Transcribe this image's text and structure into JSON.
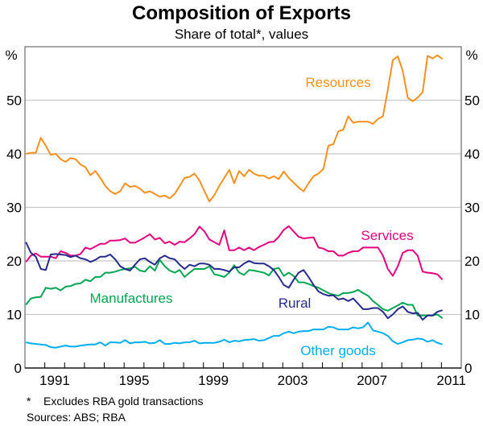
{
  "chart_data": {
    "type": "line",
    "title": "Composition of Exports",
    "subtitle": "Share of total*, values",
    "ylabel_left": "%",
    "ylabel_right": "%",
    "ylim": [
      0,
      60
    ],
    "yticks": [
      0,
      10,
      20,
      30,
      40,
      50
    ],
    "xlim": [
      1990,
      2012
    ],
    "xtick_labels": [
      "1991",
      "1995",
      "1999",
      "2003",
      "2007",
      "2011"
    ],
    "x_frequency": "quarterly",
    "x_start": "1990 Q1",
    "grid": true,
    "series": [
      {
        "name": "Resources",
        "color": "#f7901e",
        "values": [
          40,
          40.2,
          40.2,
          43,
          41.5,
          39.8,
          40,
          39,
          38.5,
          39.2,
          39,
          38,
          37.5,
          36,
          36.8,
          35.5,
          34,
          33,
          32.5,
          33,
          34.5,
          33.8,
          34,
          33.5,
          32.7,
          33,
          32.5,
          32,
          32.2,
          31.7,
          32.5,
          34,
          35.5,
          35.7,
          36.3,
          35,
          33,
          31.1,
          32.3,
          34,
          35.5,
          37,
          34.5,
          36.8,
          35.8,
          37,
          36.3,
          35.9,
          35.9,
          35.4,
          35.8,
          35.3,
          36.7,
          35.5,
          34.6,
          33.7,
          33,
          34.5,
          35.8,
          36.3,
          37.2,
          41.5,
          41.8,
          44.2,
          44.5,
          47,
          45.8,
          46,
          46,
          46,
          45.6,
          46.5,
          47,
          52,
          57.5,
          58.2,
          55.5,
          50.5,
          49.8,
          50.5,
          51.5,
          58.3,
          57.8,
          58.4,
          57.7
        ]
      },
      {
        "name": "Services",
        "color": "#e6007e",
        "values": [
          19.8,
          21,
          21.4,
          20.8,
          20.8,
          20.8,
          20.5,
          21.8,
          21.5,
          21,
          21,
          21.3,
          22.5,
          22.2,
          22.7,
          23.2,
          23.2,
          23.8,
          23.8,
          23.9,
          24.2,
          23.4,
          23.4,
          23.9,
          24.4,
          25,
          24,
          24.3,
          23.3,
          23.6,
          23,
          23.6,
          23.5,
          24.2,
          25,
          26.4,
          25.5,
          24,
          23.5,
          23,
          25.7,
          22,
          22,
          22.5,
          22,
          22.5,
          22,
          22.6,
          23,
          23.5,
          23.6,
          24.5,
          25.8,
          26.5,
          25.5,
          24.5,
          24.2,
          24.3,
          24.4,
          22.5,
          22.3,
          21.8,
          21.8,
          21,
          21,
          21.5,
          21.8,
          21.8,
          22.5,
          22.5,
          22.5,
          22.5,
          21,
          18.5,
          17.2,
          19,
          21.5,
          22,
          22,
          21,
          18,
          17.8,
          17.7,
          17.5,
          16.5
        ]
      },
      {
        "name": "Manufactures",
        "color": "#00a651",
        "values": [
          11.8,
          13,
          13.2,
          13.3,
          15,
          14.8,
          15,
          14.5,
          15.2,
          15.3,
          15.7,
          15.8,
          16.5,
          16.2,
          17,
          17,
          17.8,
          17.8,
          18,
          18.3,
          18.5,
          18.6,
          18.9,
          18.2,
          18,
          19,
          18.2,
          20.2,
          19,
          18.2,
          17.8,
          18.3,
          17,
          17.8,
          18.5,
          18.5,
          18.5,
          19,
          17.5,
          17.3,
          17,
          17.8,
          19.2,
          17.8,
          17.4,
          18.3,
          18.2,
          18,
          17.8,
          17.3,
          18.5,
          18.7,
          17.2,
          17.8,
          17.2,
          16,
          16,
          15.7,
          15.3,
          15,
          14.5,
          14,
          13.7,
          13.5,
          14,
          14,
          14.2,
          14.6,
          14,
          13.5,
          12.5,
          11.8,
          11,
          10.7,
          11.2,
          11.7,
          12.2,
          11.8,
          11.8,
          9.8,
          9.8,
          9.8,
          9.8,
          10,
          9.3
        ]
      },
      {
        "name": "Rural",
        "color": "#262b8c",
        "values": [
          23.5,
          21.5,
          20.8,
          18.5,
          18.3,
          21.2,
          21.3,
          21.2,
          21.1,
          20.7,
          21,
          20.5,
          20.3,
          19.8,
          20.2,
          20.8,
          20.8,
          21.2,
          20.3,
          19,
          18.5,
          18.2,
          19.3,
          20.3,
          20.5,
          19.8,
          19.3,
          20.5,
          21,
          20.5,
          20.3,
          19.3,
          18.5,
          19.3,
          19,
          19.5,
          19.5,
          19.3,
          18.5,
          18.5,
          18.3,
          18,
          18.8,
          18.8,
          19.5,
          20,
          19.6,
          19.5,
          19.5,
          19,
          18.3,
          17,
          15.5,
          15,
          16.5,
          17.8,
          18.3,
          17,
          15.5,
          14.3,
          13.8,
          13.5,
          13.6,
          12.8,
          13,
          12.5,
          13,
          12,
          11,
          11,
          11.2,
          11.2,
          10.5,
          9.3,
          10,
          11,
          11.5,
          10.5,
          10.2,
          10.3,
          9,
          9.8,
          9.8,
          10.5,
          10.8
        ]
      },
      {
        "name": "Other goods",
        "color": "#00aeef",
        "values": [
          4.8,
          4.6,
          4.5,
          4.4,
          4.3,
          3.9,
          3.8,
          4,
          4.2,
          4,
          4,
          4.2,
          4.3,
          4.4,
          4.4,
          4.8,
          4.2,
          4.8,
          4.8,
          4.7,
          5.2,
          4.6,
          4.8,
          4.8,
          4.9,
          4.6,
          4.7,
          5.2,
          4.5,
          4.5,
          4.7,
          4.6,
          4.8,
          4.8,
          5.1,
          4.6,
          4.7,
          4.7,
          4.7,
          4.9,
          5.3,
          4.8,
          5.1,
          5,
          5.2,
          5.3,
          5.4,
          5.1,
          5.2,
          5.6,
          6,
          6,
          6.5,
          6.8,
          6.5,
          6.8,
          6.9,
          6.9,
          7.2,
          7.2,
          7.2,
          7.7,
          7.6,
          7.2,
          7.2,
          7.2,
          7.6,
          7.4,
          7.6,
          8.5,
          7,
          6.8,
          6.5,
          6,
          5,
          4.5,
          4.8,
          5.2,
          5.3,
          5.5,
          5.4,
          4.9,
          5.2,
          4.7,
          4.4
        ]
      }
    ],
    "footnote": "*    Excludes RBA gold transactions",
    "sources": "Sources: ABS; RBA"
  }
}
